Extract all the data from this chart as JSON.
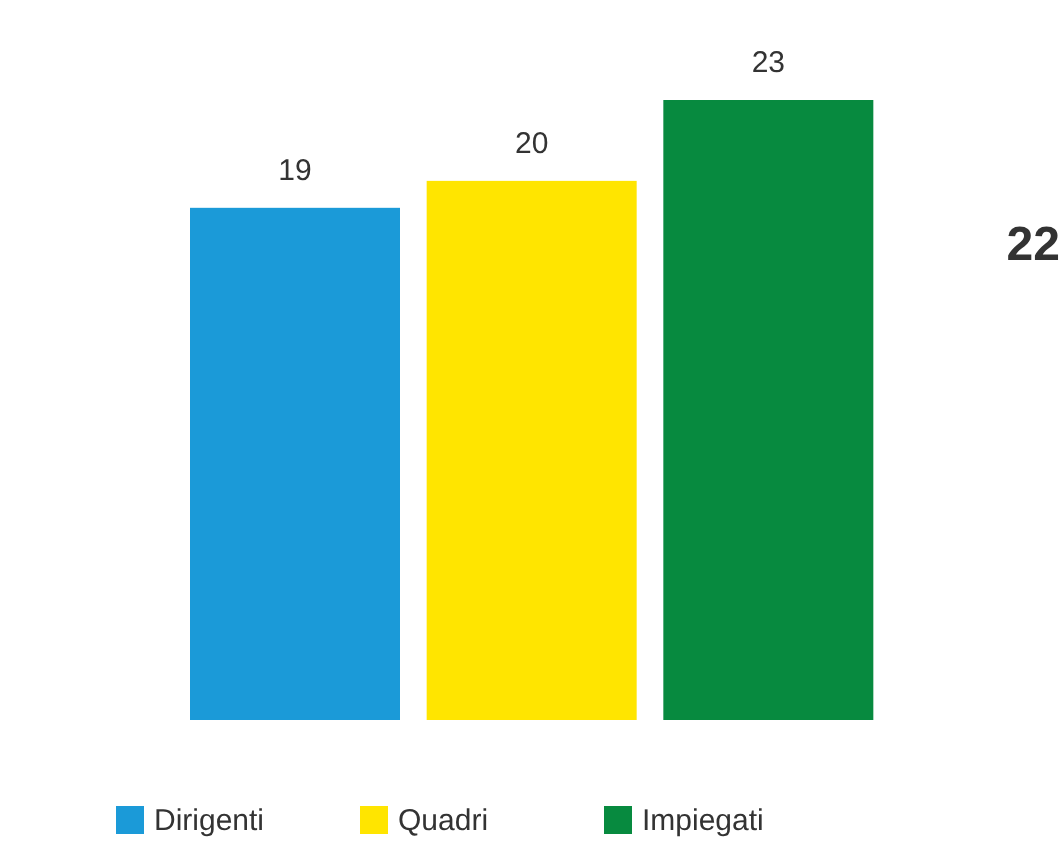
{
  "chart_data": {
    "type": "bar",
    "categories": [
      null
    ],
    "series": [
      {
        "name": "Dirigenti",
        "color": "#1b9ad8",
        "values": [
          19
        ]
      },
      {
        "name": "Quadri",
        "color": "#ffe500",
        "values": [
          20
        ]
      },
      {
        "name": "Impiegati",
        "color": "#078a3f",
        "values": [
          23
        ]
      }
    ],
    "data_labels": true,
    "legend": "bottom",
    "annotations": [
      "22"
    ]
  }
}
